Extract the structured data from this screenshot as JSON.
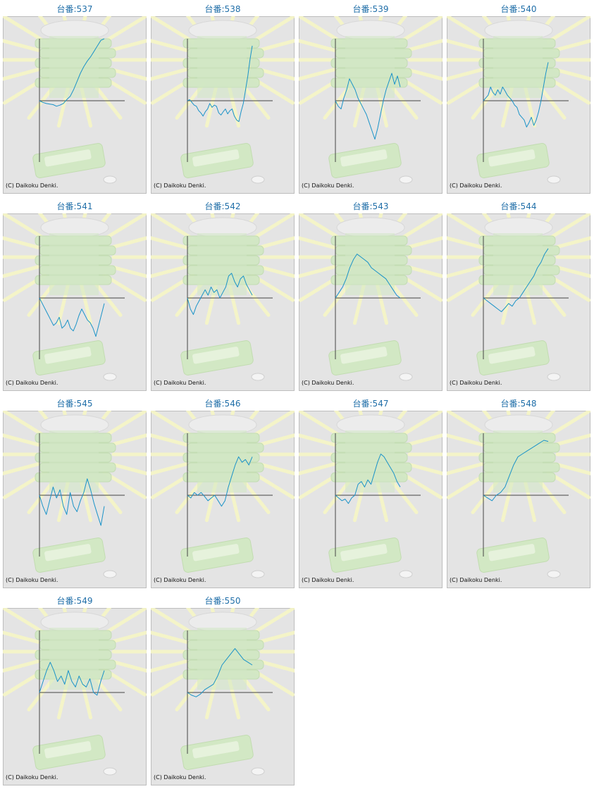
{
  "colors": {
    "title": "#1f6ea8",
    "line": "#1b93c8",
    "axis": "#444444",
    "panel_bg": "#e4e4e4",
    "panel_border": "#bdbdbd",
    "rays": "#f6f6c6",
    "machine": "#d2e8c4"
  },
  "copyright": "(C) Daikoku Denki.",
  "chart_data": [
    {
      "type": "line",
      "title": "台番:537",
      "values": [
        0,
        -3,
        -5,
        -6,
        -7,
        -10,
        -8,
        -5,
        2,
        8,
        20,
        35,
        50,
        62,
        72,
        80,
        90,
        100,
        110,
        118
      ]
    },
    {
      "type": "line",
      "title": "台番:538",
      "values": [
        0,
        2,
        -3,
        -8,
        -10,
        -18,
        -22,
        -28,
        -20,
        -15,
        -5,
        -12,
        -8,
        -10,
        -22,
        -26,
        -20,
        -15,
        -24,
        -18,
        -15,
        -28,
        -35,
        -38,
        -20,
        -5,
        20,
        45,
        75,
        100
      ]
    },
    {
      "type": "line",
      "title": "台番:539",
      "values": [
        0,
        -10,
        -15,
        5,
        20,
        40,
        30,
        20,
        5,
        -5,
        -15,
        -25,
        -40,
        -55,
        -70,
        -50,
        -25,
        0,
        20,
        35,
        50,
        30,
        45,
        25
      ]
    },
    {
      "type": "line",
      "title": "台番:540",
      "values": [
        0,
        5,
        10,
        25,
        15,
        10,
        20,
        12,
        25,
        18,
        10,
        5,
        0,
        -8,
        -12,
        -25,
        -30,
        -35,
        -48,
        -40,
        -30,
        -45,
        -35,
        -20,
        0,
        25,
        50,
        70
      ]
    },
    {
      "type": "line",
      "title": "台番:541",
      "values": [
        0,
        -10,
        -20,
        -30,
        -40,
        -50,
        -45,
        -35,
        -55,
        -50,
        -40,
        -55,
        -60,
        -48,
        -32,
        -20,
        -30,
        -40,
        -45,
        -55,
        -70,
        -50,
        -30,
        -10
      ]
    },
    {
      "type": "line",
      "title": "台番:542",
      "values": [
        0,
        -20,
        -30,
        -15,
        -5,
        5,
        15,
        5,
        20,
        10,
        15,
        0,
        10,
        20,
        40,
        45,
        30,
        20,
        35,
        40,
        25,
        15,
        5
      ]
    },
    {
      "type": "line",
      "title": "台番:543",
      "values": [
        0,
        10,
        20,
        35,
        55,
        70,
        80,
        75,
        70,
        65,
        55,
        50,
        45,
        40,
        35,
        25,
        15,
        5,
        0
      ]
    },
    {
      "type": "line",
      "title": "台番:544",
      "values": [
        0,
        -5,
        -10,
        -15,
        -20,
        -25,
        -18,
        -10,
        -15,
        -5,
        0,
        10,
        20,
        30,
        40,
        55,
        65,
        80,
        90
      ]
    },
    {
      "type": "line",
      "title": "台番:545",
      "values": [
        0,
        -20,
        -35,
        -10,
        15,
        -5,
        10,
        -20,
        -35,
        5,
        -20,
        -30,
        -10,
        5,
        30,
        10,
        -15,
        -35,
        -55,
        -20
      ]
    },
    {
      "type": "line",
      "title": "台番:546",
      "values": [
        0,
        -5,
        5,
        0,
        5,
        -2,
        -10,
        -5,
        0,
        -10,
        -20,
        -10,
        15,
        35,
        55,
        70,
        60,
        65,
        55,
        70
      ]
    },
    {
      "type": "line",
      "title": "台番:547",
      "values": [
        0,
        -5,
        -10,
        -7,
        -15,
        -5,
        0,
        20,
        25,
        15,
        28,
        20,
        40,
        60,
        75,
        70,
        60,
        50,
        40,
        25,
        15
      ]
    },
    {
      "type": "line",
      "title": "台番:548",
      "values": [
        0,
        -5,
        -10,
        0,
        5,
        15,
        35,
        55,
        70,
        75,
        80,
        85,
        90,
        95,
        100,
        98
      ]
    },
    {
      "type": "line",
      "title": "台番:549",
      "values": [
        0,
        20,
        40,
        55,
        40,
        20,
        30,
        15,
        40,
        20,
        10,
        30,
        15,
        10,
        25,
        0,
        -5,
        20,
        40
      ]
    },
    {
      "type": "line",
      "title": "台番:550",
      "values": [
        0,
        -5,
        -8,
        -3,
        5,
        10,
        15,
        30,
        50,
        60,
        70,
        80,
        70,
        60,
        55,
        50
      ]
    }
  ]
}
